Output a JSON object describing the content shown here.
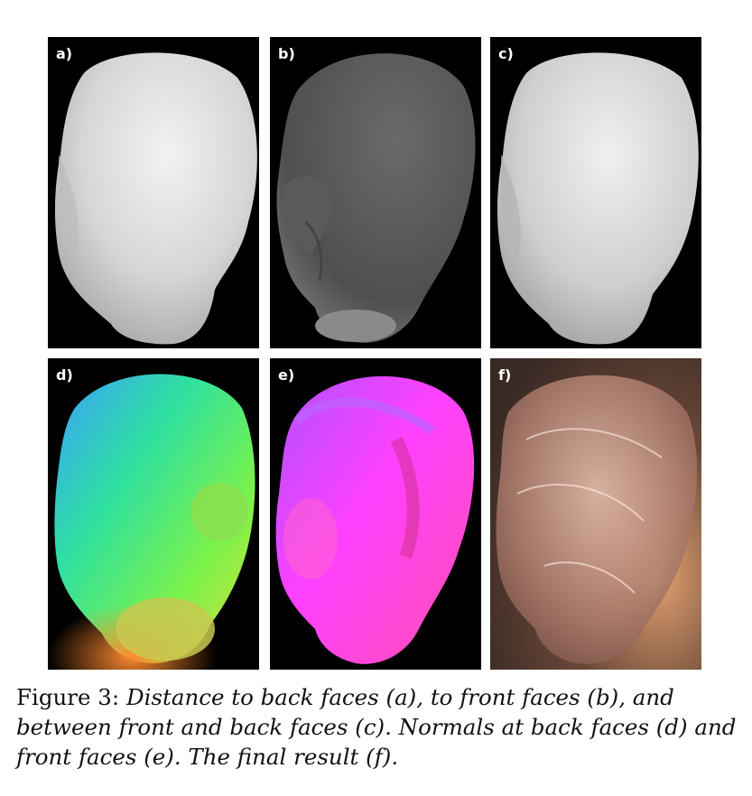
{
  "figure": {
    "panels": [
      {
        "id": "a",
        "label": "a)"
      },
      {
        "id": "b",
        "label": "b)"
      },
      {
        "id": "c",
        "label": "c)"
      },
      {
        "id": "d",
        "label": "d)"
      },
      {
        "id": "e",
        "label": "e)"
      },
      {
        "id": "f",
        "label": "f)"
      }
    ],
    "caption": {
      "label": "Figure 3:",
      "text": "Distance to back faces (a), to front faces (b), and between front and back faces (c). Normals at back faces (d) and front faces (e). The final result (f)."
    }
  }
}
